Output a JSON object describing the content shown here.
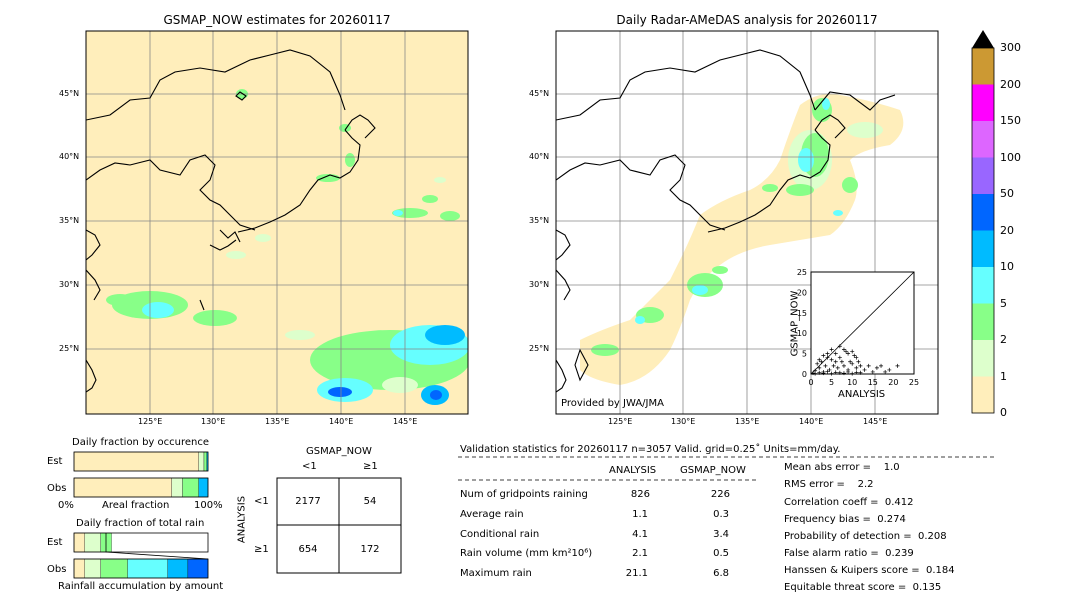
{
  "left_map": {
    "title": "GSMAP_NOW estimates for 20260117",
    "lon_ticks": [
      "125°E",
      "130°E",
      "135°E",
      "140°E",
      "145°E"
    ],
    "lat_ticks": [
      "45°N",
      "40°N",
      "35°N",
      "30°N",
      "25°N"
    ]
  },
  "right_map": {
    "title": "Daily Radar-AMeDAS analysis for 20260117",
    "lon_ticks": [
      "125°E",
      "130°E",
      "135°E",
      "140°E",
      "145°E"
    ],
    "lat_ticks": [
      "45°N",
      "40°N",
      "35°N",
      "30°N",
      "25°N"
    ],
    "credit": "Provided by JWA/JMA"
  },
  "colorbar": {
    "labels": [
      "300",
      "200",
      "150",
      "100",
      "50",
      "20",
      "10",
      "5",
      "2",
      "1",
      "0"
    ],
    "colors": [
      "#cc9933",
      "#ff00ff",
      "#dd66ff",
      "#9966ff",
      "#0066ff",
      "#00bbff",
      "#66ffff",
      "#88ff88",
      "#ddffcc",
      "#ffeebb"
    ]
  },
  "scatter": {
    "xlabel": "ANALYSIS",
    "ylabel": "GSMAP_NOW",
    "ticks": [
      "0",
      "5",
      "10",
      "15",
      "20",
      "25"
    ]
  },
  "occurrence": {
    "title": "Daily fraction by occurence",
    "est_label": "Est",
    "obs_label": "Obs",
    "axis_left": "0%",
    "axis_mid": "Areal fraction",
    "axis_right": "100%"
  },
  "rainfall": {
    "title": "Daily fraction of total rain",
    "est_label": "Est",
    "obs_label": "Obs",
    "axis_label": "Rainfall accumulation by amount"
  },
  "contingency": {
    "col_title": "GSMAP_NOW",
    "col_lt": "<1",
    "col_ge": "≥1",
    "row_title": "ANALYSIS",
    "row_lt": "<1",
    "row_ge": "≥1",
    "a": "2177",
    "b": "54",
    "c": "654",
    "d": "172"
  },
  "validation": {
    "header": "Validation statistics for 20260117  n=3057 Valid. grid=0.25˚ Units=mm/day.",
    "col_analysis": "ANALYSIS",
    "col_gsmap": "GSMAP_NOW",
    "rows": [
      {
        "label": "Num of gridpoints raining",
        "analysis": "826",
        "gsmap": "226"
      },
      {
        "label": "Average rain",
        "analysis": "1.1",
        "gsmap": "0.3"
      },
      {
        "label": "Conditional rain",
        "analysis": "4.1",
        "gsmap": "3.4"
      },
      {
        "label": "Rain volume (mm km²10⁶)",
        "analysis": "2.1",
        "gsmap": "0.5"
      },
      {
        "label": "Maximum rain",
        "analysis": "21.1",
        "gsmap": "6.8"
      }
    ],
    "scores": [
      "Mean abs error =    1.0",
      "RMS error =    2.2",
      "Correlation coeff =  0.412",
      "Frequency bias =  0.274",
      "Probability of detection =  0.208",
      "False alarm ratio =  0.239",
      "Hanssen & Kuipers score =  0.184",
      "Equitable threat score =  0.135"
    ]
  },
  "chart_data": [
    {
      "type": "scatter",
      "xlabel": "ANALYSIS",
      "ylabel": "GSMAP_NOW",
      "xlim": [
        0,
        25
      ],
      "ylim": [
        0,
        25
      ],
      "x": [
        0.5,
        1,
        1.5,
        2,
        2.5,
        3,
        3.5,
        4,
        4.5,
        5,
        5.5,
        6,
        6.5,
        7,
        7.5,
        8,
        8.5,
        9,
        9.5,
        10,
        10.5,
        11,
        11.5,
        12,
        13,
        14,
        15,
        16,
        17,
        18,
        19,
        21,
        1,
        2,
        3,
        4,
        5,
        6,
        7,
        8,
        9,
        10,
        11,
        12,
        3,
        5,
        7,
        9,
        11,
        2,
        4,
        6,
        8,
        10
      ],
      "y": [
        0.2,
        0.8,
        2.5,
        1.5,
        3,
        0.5,
        2,
        4,
        1,
        3.5,
        2,
        5,
        1.5,
        4,
        3,
        2,
        5.5,
        1,
        3,
        2.5,
        4.5,
        1.5,
        3,
        2,
        1,
        2,
        0.5,
        1.5,
        2,
        0.5,
        1,
        2,
        0.1,
        0.3,
        0.2,
        0.6,
        0.1,
        0.4,
        0.3,
        0.2,
        0.5,
        0.1,
        0.4,
        0.3,
        4.5,
        6,
        6.8,
        5,
        4,
        3.5,
        5,
        3,
        6,
        5.5
      ]
    },
    {
      "type": "bar",
      "title": "Daily fraction by occurence",
      "categories": [
        "Est",
        "Obs"
      ],
      "series": [
        {
          "values": [
            0.93,
            0.73
          ]
        },
        {
          "values": [
            0.04,
            0.08
          ]
        },
        {
          "values": [
            0.02,
            0.12
          ]
        },
        {
          "values": [
            0.01,
            0.07
          ]
        }
      ]
    },
    {
      "type": "bar",
      "title": "Daily fraction of total rain",
      "categories": [
        "Est",
        "Obs"
      ],
      "series": [
        {
          "values": [
            0.08,
            0.08
          ]
        },
        {
          "values": [
            0.12,
            0.12
          ]
        },
        {
          "values": [
            0.08,
            0.2
          ]
        },
        {
          "values": [
            0.0,
            0.3
          ]
        },
        {
          "values": [
            0.0,
            0.15
          ]
        },
        {
          "values": [
            0.0,
            0.15
          ]
        }
      ]
    }
  ]
}
